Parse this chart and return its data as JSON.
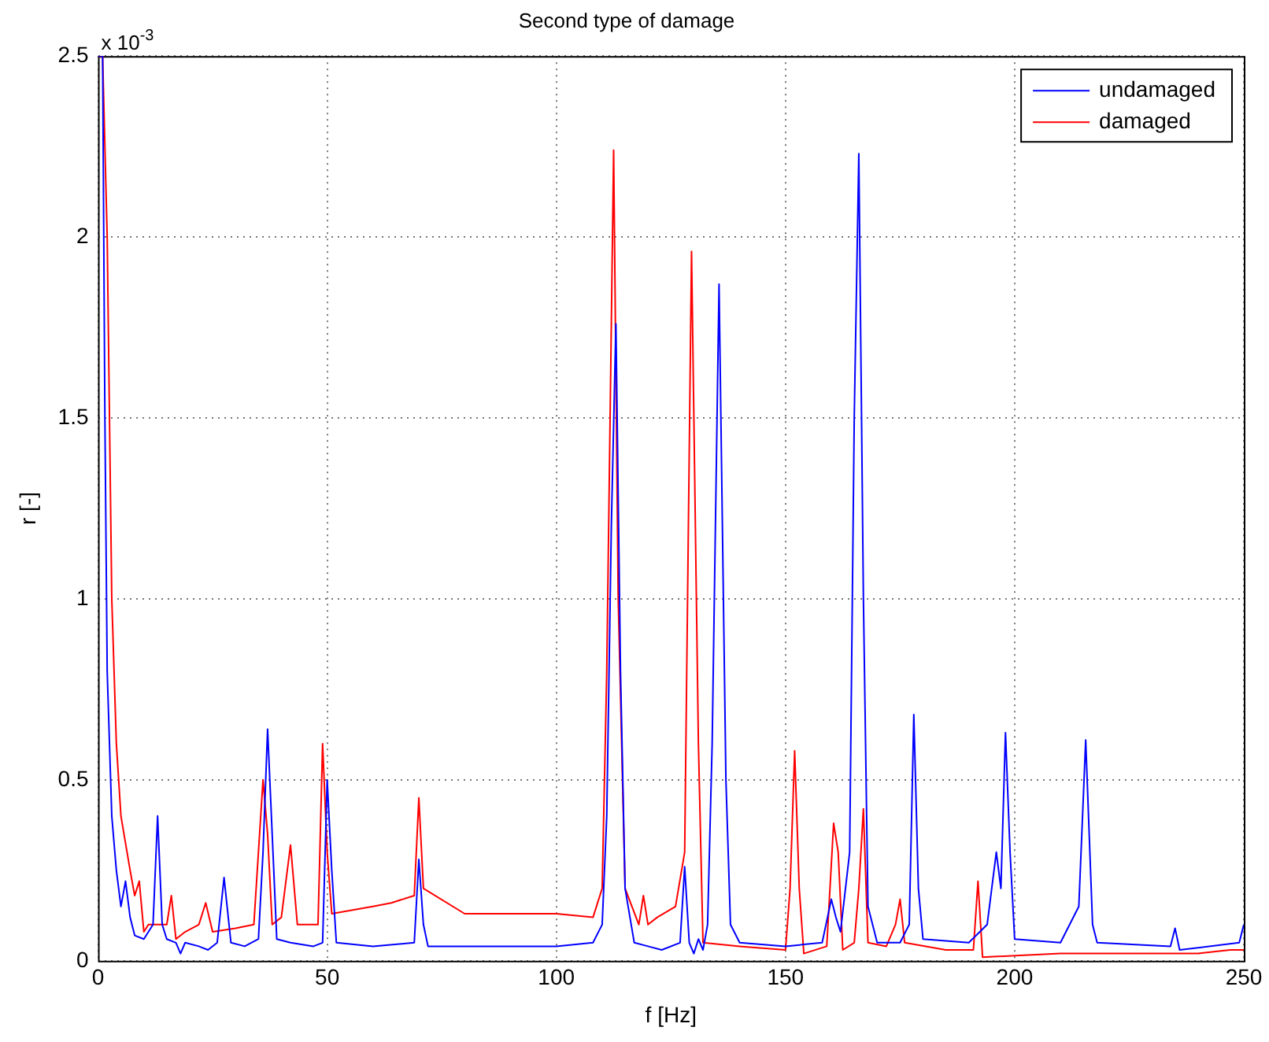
{
  "chart_data": {
    "type": "line",
    "title": "Second type of damage",
    "xlabel": "f [Hz]",
    "ylabel": "r [-]",
    "annotations": [
      "x 10$^{-3}$"
    ],
    "xlim": [
      0,
      250
    ],
    "xticks": [
      0,
      50,
      100,
      150,
      200,
      250
    ],
    "ylim": [
      0,
      2.5
    ],
    "yticks": [
      0,
      0.5,
      1,
      1.5,
      2,
      2.5
    ],
    "grid": true,
    "legend": "top right",
    "series": [
      {
        "name": "undamaged",
        "color": "#0000ff",
        "x": [
          0,
          1,
          1.5,
          2,
          3,
          4,
          5,
          6,
          7,
          8,
          10,
          12,
          13,
          14,
          15,
          17,
          18,
          19,
          22,
          24,
          26,
          27.5,
          29,
          32,
          35,
          36,
          37,
          38,
          39,
          42,
          47,
          49,
          50,
          51,
          52,
          60,
          69,
          70,
          71,
          72,
          100,
          108,
          110,
          111,
          112,
          113,
          114,
          115,
          117,
          120,
          123,
          127,
          128,
          129,
          130,
          131,
          132,
          133,
          134,
          135.5,
          137,
          138,
          140,
          150,
          158,
          160,
          161,
          162,
          164,
          165,
          166,
          167,
          168,
          170,
          175,
          177,
          178,
          179,
          180,
          190,
          194,
          196,
          197,
          198,
          199,
          200,
          210,
          214,
          215.5,
          217,
          218,
          234,
          235,
          236,
          249,
          250
        ],
        "values": [
          2.5,
          2.5,
          1.5,
          0.8,
          0.4,
          0.25,
          0.15,
          0.22,
          0.12,
          0.07,
          0.06,
          0.1,
          0.4,
          0.1,
          0.06,
          0.05,
          0.02,
          0.05,
          0.04,
          0.03,
          0.05,
          0.23,
          0.05,
          0.04,
          0.06,
          0.3,
          0.64,
          0.35,
          0.06,
          0.05,
          0.04,
          0.05,
          0.5,
          0.25,
          0.05,
          0.04,
          0.05,
          0.28,
          0.1,
          0.04,
          0.04,
          0.05,
          0.1,
          0.4,
          1.2,
          1.76,
          0.8,
          0.2,
          0.05,
          0.04,
          0.03,
          0.05,
          0.26,
          0.05,
          0.02,
          0.06,
          0.03,
          0.1,
          0.6,
          1.87,
          0.5,
          0.1,
          0.05,
          0.04,
          0.05,
          0.17,
          0.12,
          0.08,
          0.3,
          1.5,
          2.23,
          1.0,
          0.15,
          0.05,
          0.05,
          0.1,
          0.68,
          0.2,
          0.06,
          0.05,
          0.1,
          0.3,
          0.2,
          0.63,
          0.3,
          0.06,
          0.05,
          0.15,
          0.61,
          0.1,
          0.05,
          0.04,
          0.09,
          0.03,
          0.05,
          0.1
        ]
      },
      {
        "name": "damaged",
        "color": "#ff0000",
        "x": [
          0,
          1,
          2,
          3,
          4,
          5,
          7,
          8,
          9,
          10,
          11,
          15,
          16,
          17,
          19,
          22,
          23.5,
          25,
          30,
          34,
          35,
          36,
          37,
          38,
          40,
          42,
          43.5,
          48,
          49,
          50,
          51,
          60,
          64,
          69,
          70,
          71,
          80,
          100,
          108,
          110,
          111,
          112.5,
          113.5,
          115,
          118,
          119,
          120,
          122,
          126,
          128,
          129.5,
          131,
          132,
          140,
          150,
          151,
          152,
          153,
          154,
          159,
          160.5,
          161.5,
          162.5,
          165,
          166,
          167,
          168,
          172,
          174,
          175,
          176,
          185,
          191,
          192,
          193,
          210,
          240,
          247,
          250
        ],
        "values": [
          2.5,
          2.5,
          2.0,
          1.0,
          0.6,
          0.4,
          0.25,
          0.18,
          0.22,
          0.08,
          0.1,
          0.1,
          0.18,
          0.06,
          0.08,
          0.1,
          0.16,
          0.08,
          0.09,
          0.1,
          0.3,
          0.5,
          0.35,
          0.1,
          0.12,
          0.32,
          0.1,
          0.1,
          0.6,
          0.3,
          0.13,
          0.15,
          0.16,
          0.18,
          0.45,
          0.2,
          0.13,
          0.13,
          0.12,
          0.2,
          0.8,
          2.24,
          1.0,
          0.2,
          0.1,
          0.18,
          0.1,
          0.12,
          0.15,
          0.3,
          1.96,
          0.6,
          0.05,
          0.04,
          0.03,
          0.2,
          0.58,
          0.2,
          0.02,
          0.04,
          0.38,
          0.3,
          0.03,
          0.05,
          0.2,
          0.42,
          0.05,
          0.04,
          0.1,
          0.17,
          0.05,
          0.03,
          0.03,
          0.22,
          0.01,
          0.02,
          0.02,
          0.03,
          0.03
        ]
      }
    ]
  }
}
